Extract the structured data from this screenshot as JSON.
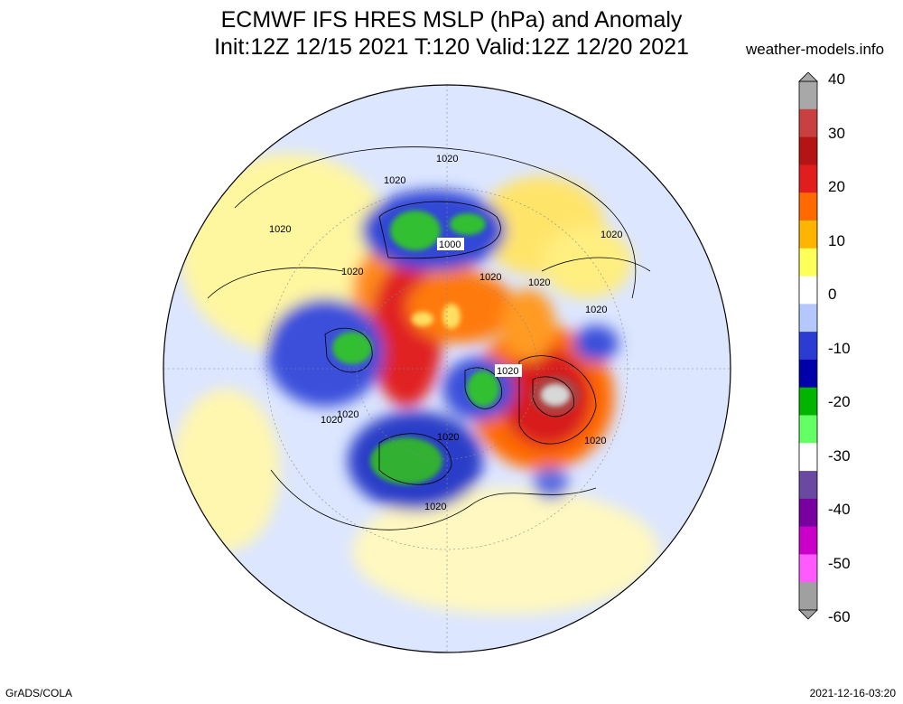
{
  "title_line1": "ECMWF IFS HRES MSLP (hPa) and Anomaly",
  "title_line2": "Init:12Z 12/15 2021 T:120 Valid:12Z 12/20 2021",
  "site": "weather-models.info",
  "footer_left": "GrADS/COLA",
  "footer_right": "2021-12-16-03:20",
  "colorbar": {
    "labels": [
      "40",
      "30",
      "20",
      "10",
      "0",
      "-10",
      "-20",
      "-30",
      "-40",
      "-50",
      "-60"
    ],
    "colors": [
      "#a8a8a8",
      "#c84040",
      "#b41414",
      "#e11e1e",
      "#ff6a00",
      "#ffb400",
      "#ffff5a",
      "#ffffff",
      "#b4c8ff",
      "#2a3cd2",
      "#0000aa",
      "#00b400",
      "#64ff64",
      "#ffffff",
      "#6a4aa0",
      "#7800a0",
      "#c800c8",
      "#ff5aff",
      "#a0a0a0"
    ]
  },
  "isobar_labels": [
    "1020",
    "1020",
    "1020",
    "1020",
    "1000",
    "1020",
    "1020",
    "1020",
    "1020",
    "1020",
    "1020",
    "1020",
    "1020",
    "1020",
    "1020"
  ]
}
